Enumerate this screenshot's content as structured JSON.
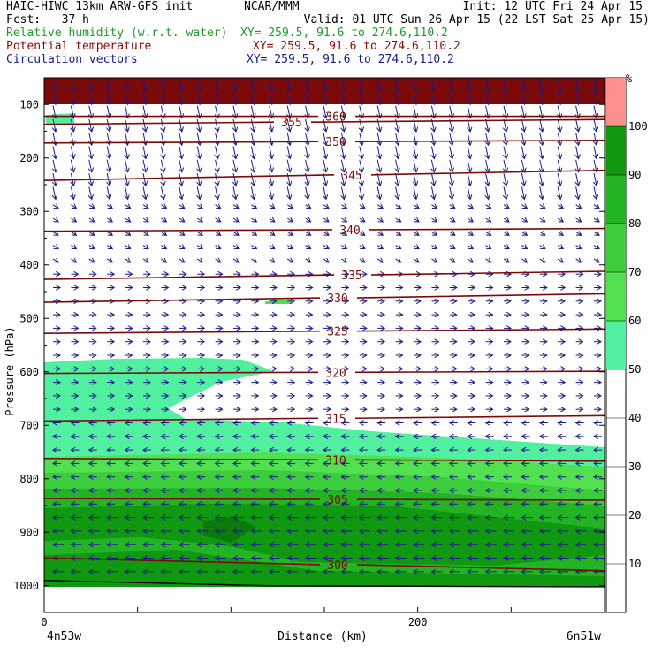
{
  "header": {
    "line1_left": "HAIC-HIWC 13km ARW-GFS init",
    "line1_mid": "NCAR/MMM",
    "init": "Init: 12 UTC Fri 24 Apr 15",
    "fcst": "Fcst:   37 h",
    "valid": "Valid: 01 UTC Sun 26 Apr 15 (22 LST Sat 25 Apr 15)",
    "fields": [
      {
        "name": "Relative humidity (w.r.t. water)",
        "xy": "XY= 259.5, 91.6 to 274.6,110.2",
        "color": "#1f9a2a"
      },
      {
        "name": "Potential temperature",
        "xy": "XY= 259.5, 91.6 to 274.6,110.2",
        "color": "#8b0a0a"
      },
      {
        "name": "Circulation vectors",
        "xy": "XY= 259.5, 91.6 to 274.6,110.2",
        "color": "#1a1a8c"
      }
    ]
  },
  "colors": {
    "theta": "#7a0a0a",
    "vectors": "#1a1a8c",
    "rh": {
      "50": "#50f0a0",
      "60": "#50e050",
      "70": "#3ccc3c",
      "80": "#22b422",
      "90": "#109810",
      "100": "#ff9090"
    }
  },
  "chart_data": {
    "type": "cross-section",
    "xlabel": "Distance (km)",
    "ylabel": "Pressure (hPa)",
    "x_ticks": [
      0,
      200
    ],
    "x_range_km": [
      0,
      300
    ],
    "y_ticks": [
      100,
      200,
      300,
      400,
      500,
      600,
      700,
      800,
      900,
      1000
    ],
    "y_range_hPa": [
      50,
      1050
    ],
    "left_endpoint": "4n53w",
    "right_endpoint": "6n51w",
    "colorbar": {
      "unit": "%",
      "ticks": [
        10,
        20,
        30,
        40,
        50,
        60,
        70,
        80,
        90,
        100
      ],
      "bins": [
        {
          "from": 50,
          "to": 60,
          "color": "#50f0a0"
        },
        {
          "from": 60,
          "to": 70,
          "color": "#50e050"
        },
        {
          "from": 70,
          "to": 80,
          "color": "#3ccc3c"
        },
        {
          "from": 80,
          "to": 90,
          "color": "#22b422"
        },
        {
          "from": 90,
          "to": 100,
          "color": "#109810"
        },
        {
          "from": 100,
          "to": 110,
          "color": "#ff9090"
        }
      ]
    },
    "theta_contours": [
      {
        "label": "360",
        "p_left": 122,
        "p_right": 122
      },
      {
        "label": "355",
        "p_left": 137,
        "p_right": 128
      },
      {
        "label": "350",
        "p_left": 172,
        "p_right": 167
      },
      {
        "label": "345",
        "p_left": 242,
        "p_right": 223
      },
      {
        "label": "340",
        "p_left": 337,
        "p_right": 332
      },
      {
        "label": "335",
        "p_left": 427,
        "p_right": 412
      },
      {
        "label": "330",
        "p_left": 470,
        "p_right": 454
      },
      {
        "label": "325",
        "p_left": 528,
        "p_right": 520
      },
      {
        "label": "320",
        "p_left": 603,
        "p_right": 599
      },
      {
        "label": "315",
        "p_left": 692,
        "p_right": 682
      },
      {
        "label": "310",
        "p_left": 762,
        "p_right": 767
      },
      {
        "label": "305",
        "p_left": 837,
        "p_right": 840
      },
      {
        "label": "300",
        "p_left": 948,
        "p_right": 972
      }
    ]
  }
}
